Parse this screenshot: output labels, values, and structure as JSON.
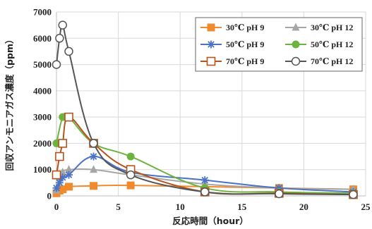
{
  "chart_data": {
    "type": "line",
    "title": "",
    "xlabel": "反応時間（hour）",
    "ylabel": "回収アンモニアガス濃度（ppm）",
    "xlim": [
      0,
      25
    ],
    "ylim": [
      0,
      7000
    ],
    "xticks": [
      "0",
      "5",
      "10",
      "15",
      "20",
      "25"
    ],
    "yticks": [
      "0",
      "1000",
      "2000",
      "3000",
      "4000",
      "5000",
      "6000",
      "7000"
    ],
    "grid": true,
    "legend_position": "top-right",
    "series": [
      {
        "name": "30℃ pH 9",
        "color": "#f08a2c",
        "marker": "square-filled",
        "points": [
          [
            0,
            100
          ],
          [
            0.25,
            200
          ],
          [
            0.5,
            250
          ],
          [
            1,
            350
          ],
          [
            3,
            380
          ],
          [
            6,
            400
          ],
          [
            18,
            300
          ],
          [
            24,
            250
          ]
        ]
      },
      {
        "name": "30℃ pH 12",
        "color": "#a6a6a6",
        "marker": "triangle-filled",
        "points": [
          [
            0,
            200
          ],
          [
            0.25,
            700
          ],
          [
            0.5,
            900
          ],
          [
            1,
            1000
          ],
          [
            3,
            1000
          ],
          [
            6,
            800
          ],
          [
            12,
            450
          ],
          [
            18,
            300
          ],
          [
            24,
            250
          ]
        ]
      },
      {
        "name": "50℃ pH 9",
        "color": "#4a72c6",
        "marker": "star",
        "points": [
          [
            0,
            300
          ],
          [
            0.25,
            500
          ],
          [
            0.5,
            700
          ],
          [
            1,
            800
          ],
          [
            3,
            1500
          ],
          [
            6,
            900
          ],
          [
            12,
            600
          ],
          [
            18,
            300
          ],
          [
            24,
            150
          ]
        ]
      },
      {
        "name": "50℃ pH 12",
        "color": "#6db33f",
        "marker": "circle-filled",
        "points": [
          [
            0,
            2000
          ],
          [
            0.5,
            3000
          ],
          [
            1,
            3000
          ],
          [
            3,
            2000
          ],
          [
            6,
            1500
          ],
          [
            12,
            300
          ],
          [
            18,
            150
          ],
          [
            24,
            100
          ]
        ]
      },
      {
        "name": "70℃ pH 9",
        "color": "#b5541c",
        "marker": "square-open",
        "points": [
          [
            0,
            800
          ],
          [
            0.25,
            1500
          ],
          [
            0.5,
            2000
          ],
          [
            1,
            3000
          ],
          [
            3,
            2000
          ],
          [
            6,
            1000
          ],
          [
            12,
            150
          ],
          [
            18,
            100
          ],
          [
            24,
            50
          ]
        ]
      },
      {
        "name": "70℃ pH 12",
        "color": "#555555",
        "marker": "circle-open",
        "points": [
          [
            0,
            5000
          ],
          [
            0.25,
            6000
          ],
          [
            0.5,
            6500
          ],
          [
            1,
            5500
          ],
          [
            3,
            2000
          ],
          [
            6,
            800
          ],
          [
            12,
            150
          ],
          [
            18,
            80
          ],
          [
            24,
            50
          ]
        ]
      }
    ]
  }
}
